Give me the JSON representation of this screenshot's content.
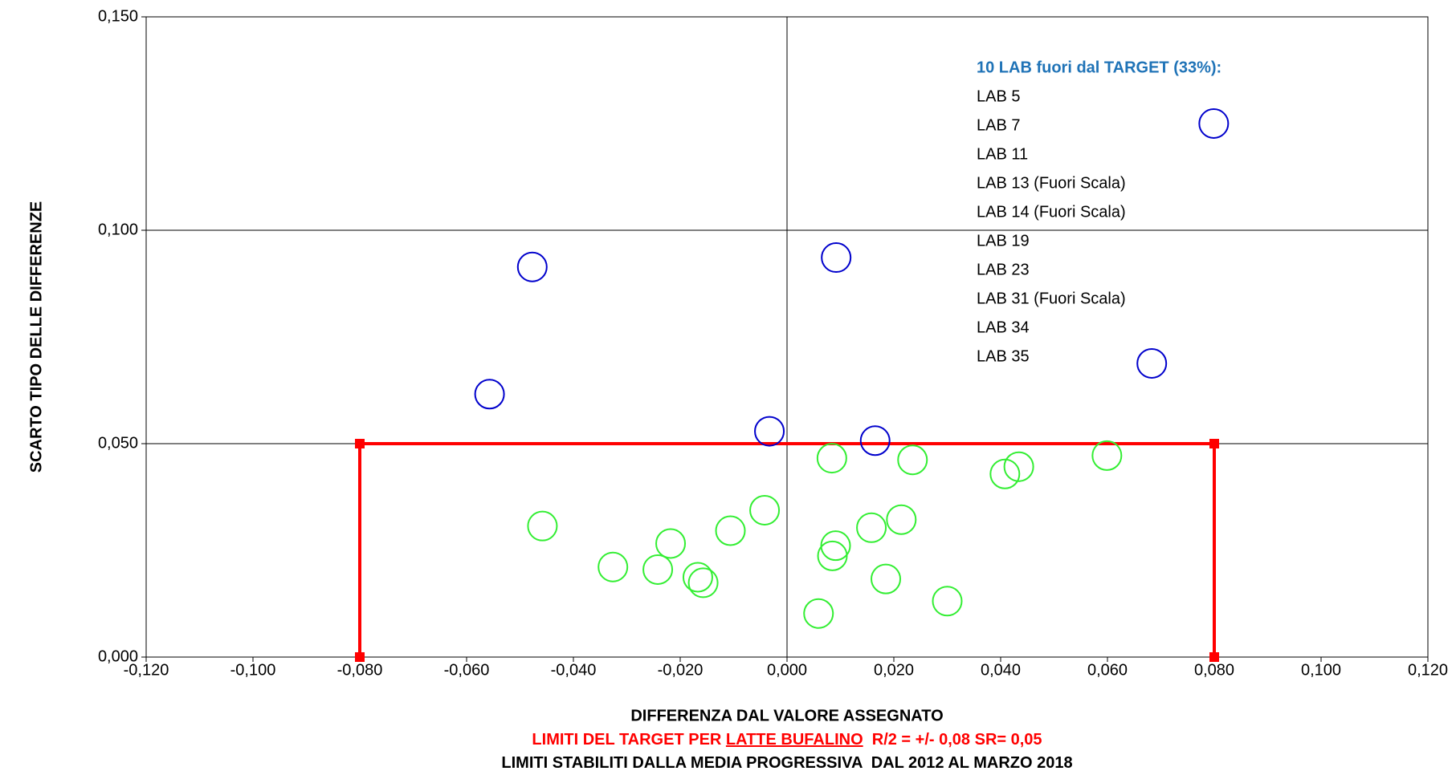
{
  "chart_data": {
    "type": "scatter",
    "xlabel": "DIFFERENZA DAL VALORE ASSEGNATO",
    "ylabel": "SCARTO TIPO DELLE DIFFERENZE",
    "notes": [
      {
        "color": "#ff0000",
        "parts": [
          {
            "text": "LIMITI DEL TARGET PER "
          },
          {
            "text": "LATTE BUFALINO",
            "underline": true
          },
          {
            "text": "  R/2 = +/- 0,08 SR= 0,05"
          }
        ]
      },
      {
        "color": "#000000",
        "parts": [
          {
            "text": "LIMITI STABILITI DALLA MEDIA PROGRESSIVA  DAL 2012 AL MARZO 2018"
          }
        ]
      }
    ],
    "annotation": {
      "title": "10 LAB fuori dal TARGET (33%):",
      "title_color": "#1f73b7",
      "lines": [
        "LAB 5",
        "LAB 7",
        "LAB 11",
        "LAB 13 (Fuori Scala)",
        "LAB 14 (Fuori Scala)",
        "LAB 19",
        "LAB 23",
        "LAB 31 (Fuori Scala)",
        "LAB 34",
        "LAB 35"
      ]
    },
    "xlim": [
      -0.12,
      0.12
    ],
    "ylim": [
      0,
      0.15
    ],
    "xticks": [
      {
        "value": -0.12,
        "label": "-0,120"
      },
      {
        "value": -0.1,
        "label": "-0,100"
      },
      {
        "value": -0.08,
        "label": "-0,080"
      },
      {
        "value": -0.06,
        "label": "-0,060"
      },
      {
        "value": -0.04,
        "label": "-0,040"
      },
      {
        "value": -0.02,
        "label": "-0,020"
      },
      {
        "value": 0,
        "label": "0,000"
      },
      {
        "value": 0.02,
        "label": "0,020"
      },
      {
        "value": 0.04,
        "label": "0,040"
      },
      {
        "value": 0.06,
        "label": "0,060"
      },
      {
        "value": 0.08,
        "label": "0,080"
      },
      {
        "value": 0.1,
        "label": "0,100"
      },
      {
        "value": 0.12,
        "label": "0,120"
      }
    ],
    "yticks": [
      {
        "value": 0,
        "label": "0,000"
      },
      {
        "value": 0.05,
        "label": "0,050"
      },
      {
        "value": 0.1,
        "label": "0,100"
      },
      {
        "value": 0.15,
        "label": "0,150"
      }
    ],
    "grid": true,
    "y_axis_at_x": 0,
    "series": [
      {
        "color": "#0000cc",
        "x": [
          -0.0477,
          -0.0557,
          0.0092,
          0.0799,
          0.0683,
          -0.0033,
          0.0165
        ],
        "values": [
          0.0914,
          0.0616,
          0.0936,
          0.125,
          0.0688,
          0.0529,
          0.0507
        ]
      },
      {
        "color": "#33ee33",
        "x": [
          -0.0458,
          -0.0326,
          -0.0242,
          -0.0218,
          -0.0167,
          -0.0157,
          -0.0106,
          -0.0042,
          0.0059,
          0.0084,
          0.0091,
          0.0085,
          0.0158,
          0.0185,
          0.0214,
          0.0235,
          0.03,
          0.0408,
          0.0434,
          0.0599
        ],
        "values": [
          0.0307,
          0.0211,
          0.0205,
          0.0266,
          0.0187,
          0.0174,
          0.0296,
          0.0344,
          0.0102,
          0.0466,
          0.0261,
          0.0237,
          0.0303,
          0.0183,
          0.0322,
          0.0462,
          0.0131,
          0.0429,
          0.0446,
          0.0472
        ]
      }
    ],
    "limit_box": {
      "color": "#ff0000",
      "x": [
        -0.08,
        -0.08,
        0.08,
        0.08
      ],
      "values": [
        0,
        0.05,
        0.05,
        0
      ]
    }
  }
}
